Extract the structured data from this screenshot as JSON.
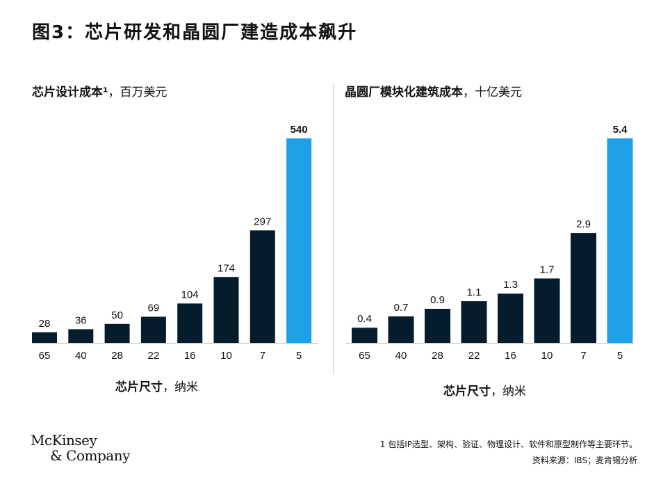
{
  "figure_title": "图3：芯片研发和晶圆厂建造成本飙升",
  "chart_data": [
    {
      "type": "bar",
      "title_bold": "芯片设计成本¹",
      "title_rest": "，百万美元",
      "xlabel_bold": "芯片尺寸",
      "xlabel_rest": "，纳米",
      "categories": [
        "65",
        "40",
        "28",
        "22",
        "16",
        "10",
        "7",
        "5"
      ],
      "values": [
        28,
        36,
        50,
        69,
        104,
        174,
        297,
        540
      ],
      "value_labels": [
        "28",
        "36",
        "50",
        "69",
        "104",
        "174",
        "297",
        "540"
      ],
      "highlight_index": 7,
      "ylim": [
        0,
        540
      ],
      "colors": {
        "bar": "#051c2c",
        "highlight": "#1f9fe8"
      }
    },
    {
      "type": "bar",
      "title_bold": "晶圆厂模块化建筑成本",
      "title_rest": "，十亿美元",
      "xlabel_bold": "芯片尺寸",
      "xlabel_rest": "，纳米",
      "categories": [
        "65",
        "40",
        "28",
        "22",
        "16",
        "10",
        "7",
        "5"
      ],
      "values": [
        0.4,
        0.7,
        0.9,
        1.1,
        1.3,
        1.7,
        2.9,
        5.4
      ],
      "value_labels": [
        "0.4",
        "0.7",
        "0.9",
        "1.1",
        "1.3",
        "1.7",
        "2.9",
        "5.4"
      ],
      "highlight_index": 7,
      "ylim": [
        0,
        5.4
      ],
      "colors": {
        "bar": "#051c2c",
        "highlight": "#1f9fe8"
      }
    }
  ],
  "footnote": "1 包括IP选型、架构、验证、物理设计、软件和原型制作等主要环节。",
  "source": "资料来源：IBS；麦肯锡分析",
  "logo": {
    "line1": "McKinsey",
    "line2": "& Company"
  }
}
